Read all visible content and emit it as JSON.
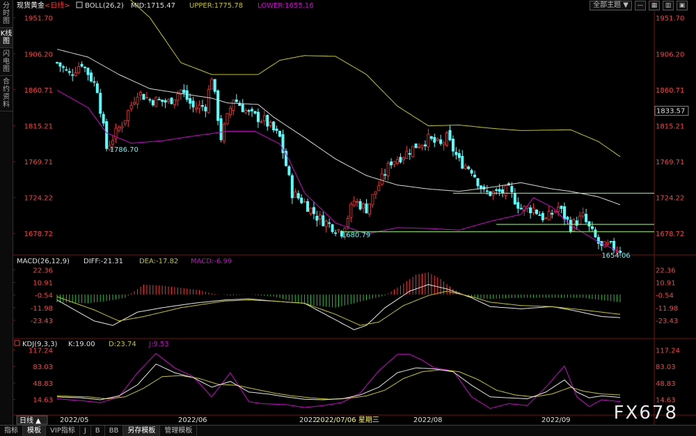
{
  "sidebar": {
    "tabs": [
      {
        "label": "分时图",
        "active": false
      },
      {
        "label": "K线图",
        "active": true
      },
      {
        "label": "闪电图",
        "active": false
      },
      {
        "label": "合约资料",
        "active": false
      }
    ]
  },
  "toolbar": {
    "theme_label": "全部主题",
    "theme_arrow": "▼"
  },
  "bottom_tabs": [
    {
      "label": "指标",
      "active": false
    },
    {
      "label": "模板",
      "active": true
    },
    {
      "label": "VIP指标",
      "active": false
    },
    {
      "label": "J",
      "active": false
    },
    {
      "label": "B",
      "active": false
    },
    {
      "label": "BB",
      "active": false
    },
    {
      "label": "另存模板",
      "active": true
    },
    {
      "label": "管理模板",
      "active": false
    }
  ],
  "watermark": "FX678",
  "colors": {
    "up": "#ff3232",
    "down": "#54ffff",
    "bg": "#000000",
    "mid": "#d8d8d8",
    "upper": "#c8c800",
    "lower": "#d200d2",
    "axis_label": "#ff4040",
    "hline": "#9cff7a",
    "annotation": "#54ffff"
  },
  "chart_data": [
    {
      "type": "candlestick",
      "instrument": "现货黄金",
      "period": "<日线>",
      "indicator_header": {
        "name": "BOLL(26,2)",
        "mid": "MID:1715.47",
        "upper": "UPPER:1775.78",
        "lower": "LOWER:1655.16"
      },
      "y_ticks": [
        "1951.70",
        "1906.20",
        "1860.71",
        "1815.21",
        "1769.71",
        "1724.22",
        "1678.72"
      ],
      "ylim": [
        1655,
        1962
      ],
      "last_price_label": "1833.57",
      "annotations": [
        "1786.70",
        "1680.79",
        "1654.06"
      ],
      "x_labels": [
        "2022/05",
        "2022/06",
        "2022",
        "2022/08",
        "2022/09"
      ],
      "cursor_label": "2022/07/06 星期三",
      "period_button": "日线",
      "bollinger": {
        "mid_points": [
          [
            0,
            1912
          ],
          [
            10,
            1902
          ],
          [
            20,
            1880
          ],
          [
            30,
            1862
          ],
          [
            40,
            1856
          ],
          [
            50,
            1850
          ],
          [
            55,
            1844
          ],
          [
            65,
            1842
          ],
          [
            70,
            1826
          ],
          [
            80,
            1800
          ],
          [
            90,
            1773
          ],
          [
            100,
            1752
          ],
          [
            110,
            1740
          ],
          [
            120,
            1735
          ],
          [
            130,
            1732
          ],
          [
            140,
            1737
          ],
          [
            150,
            1743
          ],
          [
            160,
            1735
          ],
          [
            166,
            1732
          ],
          [
            175,
            1725
          ],
          [
            182,
            1715
          ]
        ],
        "upper_points": [
          [
            0,
            1995
          ],
          [
            20,
            1988
          ],
          [
            30,
            1952
          ],
          [
            40,
            1895
          ],
          [
            50,
            1880
          ],
          [
            55,
            1880
          ],
          [
            65,
            1880
          ],
          [
            72,
            1898
          ],
          [
            80,
            1904
          ],
          [
            90,
            1903
          ],
          [
            100,
            1880
          ],
          [
            110,
            1840
          ],
          [
            120,
            1815
          ],
          [
            130,
            1816
          ],
          [
            140,
            1812
          ],
          [
            150,
            1809
          ],
          [
            166,
            1810
          ],
          [
            175,
            1795
          ],
          [
            182,
            1776
          ]
        ],
        "lower_points": [
          [
            0,
            1860
          ],
          [
            10,
            1838
          ],
          [
            16,
            1806
          ],
          [
            24,
            1793
          ],
          [
            34,
            1796
          ],
          [
            44,
            1802
          ],
          [
            55,
            1808
          ],
          [
            64,
            1808
          ],
          [
            72,
            1792
          ],
          [
            75,
            1772
          ],
          [
            80,
            1730
          ],
          [
            90,
            1692
          ],
          [
            100,
            1678
          ],
          [
            110,
            1686
          ],
          [
            120,
            1685
          ],
          [
            130,
            1683
          ],
          [
            140,
            1694
          ],
          [
            150,
            1703
          ],
          [
            154,
            1724
          ],
          [
            160,
            1712
          ],
          [
            166,
            1689
          ],
          [
            175,
            1668
          ],
          [
            182,
            1655
          ]
        ]
      },
      "candles_note": "OHLC per trading day estimated from chart",
      "anchors": [
        [
          0,
          1895
        ],
        [
          4,
          1880
        ],
        [
          8,
          1895
        ],
        [
          13,
          1862
        ],
        [
          16,
          1787
        ],
        [
          22,
          1825
        ],
        [
          26,
          1858
        ],
        [
          30,
          1848
        ],
        [
          36,
          1845
        ],
        [
          40,
          1860
        ],
        [
          44,
          1838
        ],
        [
          48,
          1840
        ],
        [
          50,
          1878
        ],
        [
          53,
          1800
        ],
        [
          57,
          1850
        ],
        [
          62,
          1830
        ],
        [
          67,
          1822
        ],
        [
          72,
          1800
        ],
        [
          76,
          1730
        ],
        [
          80,
          1718
        ],
        [
          84,
          1700
        ],
        [
          88,
          1690
        ],
        [
          92,
          1681
        ],
        [
          96,
          1720
        ],
        [
          100,
          1710
        ],
        [
          104,
          1740
        ],
        [
          108,
          1770
        ],
        [
          112,
          1778
        ],
        [
          116,
          1790
        ],
        [
          120,
          1798
        ],
        [
          124,
          1790
        ],
        [
          126,
          1800
        ],
        [
          130,
          1770
        ],
        [
          134,
          1760
        ],
        [
          138,
          1730
        ],
        [
          142,
          1730
        ],
        [
          146,
          1733
        ],
        [
          150,
          1710
        ],
        [
          154,
          1710
        ],
        [
          158,
          1696
        ],
        [
          162,
          1712
        ],
        [
          166,
          1688
        ],
        [
          170,
          1700
        ],
        [
          172,
          1685
        ],
        [
          176,
          1660
        ],
        [
          178,
          1663
        ],
        [
          182,
          1658
        ]
      ],
      "hlines": [
        {
          "y": 1729.7,
          "x_start": 128
        },
        {
          "y": 1690.2,
          "x_start": 142
        },
        {
          "y": 1680.8,
          "x_start": 92
        }
      ],
      "n_bars": 183
    },
    {
      "type": "bar",
      "indicator": "MACD(26,12,9)",
      "diff_label": "DIFF:-21.31",
      "dea_label": "DEA:-17.82",
      "macd_label": "MACD:-6.99",
      "y_ticks": [
        "22.36",
        "10.91",
        "-0.54",
        "-11.98",
        "-23.43"
      ],
      "ylim": [
        -38,
        27
      ],
      "diff_points": [
        [
          0,
          -5
        ],
        [
          12,
          -24
        ],
        [
          18,
          -28
        ],
        [
          26,
          -16
        ],
        [
          34,
          -12
        ],
        [
          44,
          -8
        ],
        [
          54,
          -5
        ],
        [
          62,
          -4
        ],
        [
          70,
          -6
        ],
        [
          80,
          -8
        ],
        [
          90,
          -23
        ],
        [
          96,
          -32
        ],
        [
          100,
          -28
        ],
        [
          106,
          -12
        ],
        [
          114,
          3
        ],
        [
          120,
          9
        ],
        [
          126,
          5
        ],
        [
          134,
          -3
        ],
        [
          140,
          -11
        ],
        [
          150,
          -13
        ],
        [
          160,
          -11
        ],
        [
          166,
          -14
        ],
        [
          176,
          -20
        ],
        [
          182,
          -21
        ]
      ],
      "dea_points": [
        [
          0,
          -2
        ],
        [
          12,
          -14
        ],
        [
          20,
          -24
        ],
        [
          28,
          -20
        ],
        [
          40,
          -12
        ],
        [
          54,
          -6
        ],
        [
          62,
          -5
        ],
        [
          70,
          -6
        ],
        [
          80,
          -8
        ],
        [
          90,
          -18
        ],
        [
          98,
          -28
        ],
        [
          104,
          -25
        ],
        [
          112,
          -10
        ],
        [
          120,
          -1
        ],
        [
          126,
          3
        ],
        [
          134,
          -2
        ],
        [
          140,
          -7
        ],
        [
          150,
          -10
        ],
        [
          160,
          -11
        ],
        [
          170,
          -14
        ],
        [
          182,
          -18
        ]
      ],
      "hist_anchors": [
        [
          0,
          -7
        ],
        [
          10,
          -8
        ],
        [
          16,
          -6
        ],
        [
          22,
          -3
        ],
        [
          28,
          9
        ],
        [
          34,
          8
        ],
        [
          40,
          6
        ],
        [
          46,
          4
        ],
        [
          50,
          1
        ],
        [
          56,
          -1
        ],
        [
          62,
          0
        ],
        [
          70,
          -2
        ],
        [
          80,
          -9
        ],
        [
          90,
          -12
        ],
        [
          96,
          -8
        ],
        [
          100,
          -5
        ],
        [
          106,
          -1
        ],
        [
          112,
          10
        ],
        [
          116,
          18
        ],
        [
          120,
          20
        ],
        [
          124,
          14
        ],
        [
          128,
          5
        ],
        [
          134,
          -3
        ],
        [
          140,
          -4
        ],
        [
          150,
          -3
        ],
        [
          160,
          -3
        ],
        [
          170,
          -3
        ],
        [
          182,
          -7
        ]
      ]
    },
    {
      "type": "line",
      "indicator": "KDJ(9,3,3)",
      "k_label": "K:19.00",
      "d_label": "D:23.74",
      "j_label": "J:9.53",
      "y_ticks": [
        "117.24",
        "83.03",
        "48.83",
        "14.63"
      ],
      "ylim": [
        -12,
        125
      ],
      "k_points": [
        [
          0,
          20
        ],
        [
          8,
          18
        ],
        [
          14,
          14
        ],
        [
          20,
          22
        ],
        [
          26,
          45
        ],
        [
          32,
          88
        ],
        [
          38,
          70
        ],
        [
          44,
          60
        ],
        [
          50,
          40
        ],
        [
          56,
          52
        ],
        [
          62,
          30
        ],
        [
          68,
          26
        ],
        [
          74,
          20
        ],
        [
          80,
          15
        ],
        [
          86,
          14
        ],
        [
          92,
          16
        ],
        [
          98,
          24
        ],
        [
          104,
          40
        ],
        [
          110,
          70
        ],
        [
          116,
          80
        ],
        [
          122,
          78
        ],
        [
          128,
          72
        ],
        [
          134,
          44
        ],
        [
          140,
          20
        ],
        [
          146,
          18
        ],
        [
          152,
          16
        ],
        [
          158,
          30
        ],
        [
          164,
          55
        ],
        [
          168,
          30
        ],
        [
          172,
          18
        ],
        [
          176,
          22
        ],
        [
          182,
          19
        ]
      ],
      "d_points": [
        [
          0,
          22
        ],
        [
          10,
          20
        ],
        [
          16,
          16
        ],
        [
          22,
          20
        ],
        [
          28,
          38
        ],
        [
          34,
          62
        ],
        [
          40,
          64
        ],
        [
          46,
          58
        ],
        [
          52,
          46
        ],
        [
          58,
          44
        ],
        [
          64,
          36
        ],
        [
          70,
          28
        ],
        [
          76,
          22
        ],
        [
          82,
          18
        ],
        [
          88,
          15
        ],
        [
          94,
          17
        ],
        [
          100,
          22
        ],
        [
          106,
          34
        ],
        [
          112,
          58
        ],
        [
          118,
          72
        ],
        [
          124,
          76
        ],
        [
          130,
          72
        ],
        [
          136,
          56
        ],
        [
          142,
          34
        ],
        [
          148,
          24
        ],
        [
          154,
          20
        ],
        [
          160,
          26
        ],
        [
          166,
          40
        ],
        [
          170,
          32
        ],
        [
          176,
          26
        ],
        [
          182,
          24
        ]
      ],
      "j_points": [
        [
          0,
          16
        ],
        [
          8,
          12
        ],
        [
          14,
          8
        ],
        [
          20,
          20
        ],
        [
          26,
          70
        ],
        [
          32,
          110
        ],
        [
          38,
          80
        ],
        [
          44,
          62
        ],
        [
          50,
          20
        ],
        [
          56,
          70
        ],
        [
          62,
          10
        ],
        [
          66,
          6
        ],
        [
          74,
          4
        ],
        [
          80,
          -2
        ],
        [
          86,
          2
        ],
        [
          92,
          8
        ],
        [
          98,
          28
        ],
        [
          104,
          74
        ],
        [
          110,
          108
        ],
        [
          114,
          108
        ],
        [
          118,
          96
        ],
        [
          122,
          80
        ],
        [
          128,
          74
        ],
        [
          134,
          20
        ],
        [
          140,
          -4
        ],
        [
          146,
          6
        ],
        [
          152,
          2
        ],
        [
          158,
          40
        ],
        [
          164,
          84
        ],
        [
          168,
          20
        ],
        [
          172,
          0
        ],
        [
          176,
          14
        ],
        [
          182,
          10
        ]
      ]
    }
  ]
}
